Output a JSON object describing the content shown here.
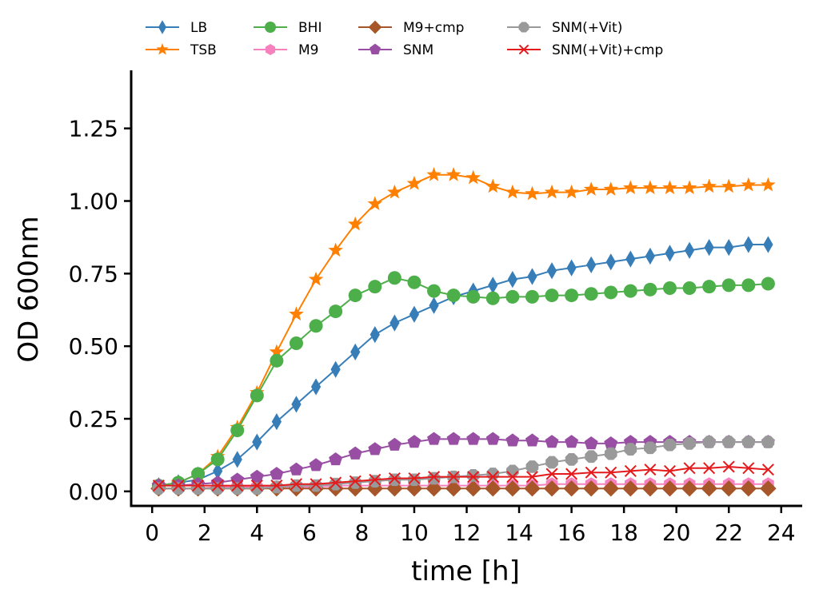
{
  "chart_data": {
    "type": "line",
    "title": "",
    "xlabel": "time [h]",
    "ylabel": "OD 600nm",
    "xlim": [
      -0.8,
      24.8
    ],
    "ylim": [
      -0.05,
      1.45
    ],
    "xticks": [
      0,
      2,
      4,
      6,
      8,
      10,
      12,
      14,
      16,
      18,
      20,
      22,
      24
    ],
    "yticks": [
      0.0,
      0.25,
      0.5,
      0.75,
      1.0,
      1.25
    ],
    "yticklabels": [
      "0.00",
      "0.25",
      "0.50",
      "0.75",
      "1.00",
      "1.25"
    ],
    "grid": false,
    "legend_position": "top",
    "x": [
      0.25,
      1.0,
      1.75,
      2.5,
      3.25,
      4.0,
      4.75,
      5.5,
      6.25,
      7.0,
      7.75,
      8.5,
      9.25,
      10.0,
      10.75,
      11.5,
      12.25,
      13.0,
      13.75,
      14.5,
      15.25,
      16.0,
      16.75,
      17.5,
      18.25,
      19.0,
      19.75,
      20.5,
      21.25,
      22.0,
      22.75,
      23.5
    ],
    "series": [
      {
        "name": "LB",
        "color": "#377eb8",
        "marker": "thin_diamond",
        "values": [
          0.02,
          0.03,
          0.04,
          0.07,
          0.11,
          0.17,
          0.24,
          0.3,
          0.36,
          0.42,
          0.48,
          0.54,
          0.58,
          0.61,
          0.64,
          0.67,
          0.69,
          0.71,
          0.73,
          0.74,
          0.76,
          0.77,
          0.78,
          0.79,
          0.8,
          0.81,
          0.82,
          0.83,
          0.84,
          0.84,
          0.85,
          0.85
        ]
      },
      {
        "name": "TSB",
        "color": "#ff7f00",
        "marker": "star",
        "values": [
          0.02,
          0.03,
          0.06,
          0.12,
          0.22,
          0.34,
          0.48,
          0.61,
          0.73,
          0.83,
          0.92,
          0.99,
          1.03,
          1.06,
          1.09,
          1.09,
          1.08,
          1.05,
          1.03,
          1.025,
          1.03,
          1.03,
          1.04,
          1.04,
          1.045,
          1.045,
          1.045,
          1.045,
          1.05,
          1.05,
          1.055,
          1.055
        ]
      },
      {
        "name": "BHI",
        "color": "#4daf4a",
        "marker": "circle",
        "values": [
          0.02,
          0.03,
          0.06,
          0.11,
          0.21,
          0.33,
          0.45,
          0.51,
          0.57,
          0.62,
          0.675,
          0.705,
          0.735,
          0.72,
          0.69,
          0.675,
          0.67,
          0.665,
          0.67,
          0.67,
          0.675,
          0.675,
          0.68,
          0.685,
          0.69,
          0.695,
          0.7,
          0.7,
          0.705,
          0.71,
          0.71,
          0.715
        ]
      },
      {
        "name": "M9",
        "color": "#f781bf",
        "marker": "hexagon",
        "values": [
          0.01,
          0.01,
          0.01,
          0.015,
          0.015,
          0.015,
          0.015,
          0.015,
          0.015,
          0.02,
          0.02,
          0.02,
          0.02,
          0.02,
          0.02,
          0.02,
          0.02,
          0.02,
          0.02,
          0.02,
          0.025,
          0.025,
          0.025,
          0.025,
          0.025,
          0.025,
          0.025,
          0.025,
          0.025,
          0.025,
          0.025,
          0.025
        ]
      },
      {
        "name": "M9+cmp",
        "color": "#a65628",
        "marker": "diamond",
        "values": [
          0.01,
          0.01,
          0.01,
          0.01,
          0.01,
          0.01,
          0.01,
          0.01,
          0.01,
          0.01,
          0.01,
          0.01,
          0.01,
          0.01,
          0.01,
          0.01,
          0.01,
          0.01,
          0.01,
          0.01,
          0.01,
          0.01,
          0.01,
          0.01,
          0.01,
          0.01,
          0.01,
          0.01,
          0.01,
          0.01,
          0.01,
          0.01
        ]
      },
      {
        "name": "SNM",
        "color": "#984ea3",
        "marker": "pentagon",
        "values": [
          0.02,
          0.02,
          0.025,
          0.03,
          0.04,
          0.05,
          0.06,
          0.075,
          0.09,
          0.11,
          0.13,
          0.145,
          0.16,
          0.17,
          0.18,
          0.18,
          0.18,
          0.18,
          0.175,
          0.175,
          0.17,
          0.17,
          0.165,
          0.165,
          0.17,
          0.17,
          0.17,
          0.17,
          0.17,
          0.17,
          0.17,
          0.17
        ]
      },
      {
        "name": "SNM(+Vit)",
        "color": "#999999",
        "marker": "octagon",
        "values": [
          0.01,
          0.01,
          0.01,
          0.01,
          0.01,
          0.01,
          0.015,
          0.02,
          0.02,
          0.025,
          0.03,
          0.035,
          0.04,
          0.04,
          0.045,
          0.05,
          0.055,
          0.06,
          0.07,
          0.085,
          0.1,
          0.11,
          0.12,
          0.13,
          0.145,
          0.15,
          0.16,
          0.165,
          0.17,
          0.17,
          0.17,
          0.17
        ]
      },
      {
        "name": "SNM(+Vit)+cmp",
        "color": "#e41a1c",
        "marker": "x",
        "values": [
          0.02,
          0.02,
          0.02,
          0.02,
          0.02,
          0.02,
          0.02,
          0.025,
          0.025,
          0.03,
          0.035,
          0.04,
          0.045,
          0.045,
          0.05,
          0.05,
          0.05,
          0.05,
          0.05,
          0.05,
          0.06,
          0.06,
          0.065,
          0.065,
          0.07,
          0.075,
          0.07,
          0.08,
          0.08,
          0.085,
          0.08,
          0.075
        ]
      }
    ]
  }
}
